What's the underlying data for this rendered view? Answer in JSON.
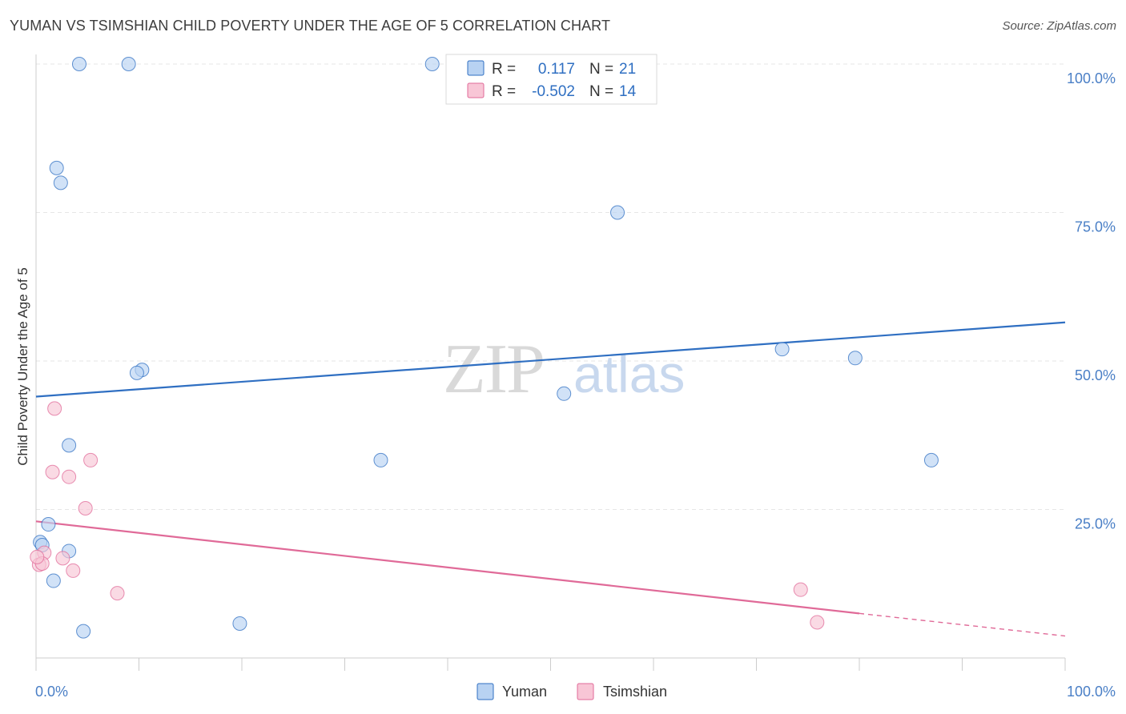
{
  "header": {
    "title": "YUMAN VS TSIMSHIAN CHILD POVERTY UNDER THE AGE OF 5 CORRELATION CHART",
    "source": "Source: ZipAtlas.com"
  },
  "watermark": {
    "zip": "ZIP",
    "atlas": "atlas"
  },
  "colors": {
    "yuman": "#2f6fc2",
    "yuman_fill": "#b8d2f2",
    "tsimshian": "#e06a98",
    "tsimshian_fill": "#f8c6d6",
    "grid": "#e6e6e6",
    "tick_label": "#4a7fc6"
  },
  "legend": {
    "r_label": "R =",
    "n_label": "N =",
    "yuman": {
      "r": "0.117",
      "n": "21"
    },
    "tsimshian": {
      "r": "-0.502",
      "n": "14"
    }
  },
  "chart_data": {
    "type": "scatter",
    "title": "YUMAN VS TSIMSHIAN CHILD POVERTY UNDER THE AGE OF 5 CORRELATION CHART",
    "xlabel": "",
    "ylabel": "Child Poverty Under the Age of 5",
    "xlim": [
      0,
      100
    ],
    "ylim": [
      0,
      100
    ],
    "x_tick_labels": [
      "0.0%",
      "100.0%"
    ],
    "y_ticks": [
      25,
      50,
      75,
      100
    ],
    "y_tick_labels": [
      "25.0%",
      "50.0%",
      "75.0%",
      "100.0%"
    ],
    "grid": true,
    "legend_position": "top-center",
    "series": [
      {
        "name": "Yuman",
        "color": "#2f6fc2",
        "points": [
          [
            4.2,
            100
          ],
          [
            9.0,
            100
          ],
          [
            38.5,
            100
          ],
          [
            2.0,
            82.5
          ],
          [
            2.4,
            80
          ],
          [
            56.5,
            75
          ],
          [
            10.3,
            48.5
          ],
          [
            9.8,
            48.0
          ],
          [
            72.5,
            52.0
          ],
          [
            79.6,
            50.5
          ],
          [
            51.3,
            44.5
          ],
          [
            33.5,
            33.3
          ],
          [
            87.0,
            33.3
          ],
          [
            3.2,
            35.8
          ],
          [
            1.2,
            22.5
          ],
          [
            0.4,
            19.5
          ],
          [
            0.6,
            19.0
          ],
          [
            3.2,
            18.0
          ],
          [
            1.7,
            13.0
          ],
          [
            4.6,
            4.5
          ],
          [
            19.8,
            5.8
          ]
        ],
        "trend": {
          "x": [
            0,
            100
          ],
          "y": [
            44,
            56.5
          ],
          "style": "solid"
        }
      },
      {
        "name": "Tsimshian",
        "color": "#e06a98",
        "points": [
          [
            1.8,
            42.0
          ],
          [
            1.6,
            31.3
          ],
          [
            3.2,
            30.5
          ],
          [
            5.3,
            33.3
          ],
          [
            4.8,
            25.2
          ],
          [
            0.8,
            17.7
          ],
          [
            2.6,
            16.8
          ],
          [
            0.3,
            15.7
          ],
          [
            0.6,
            15.9
          ],
          [
            3.6,
            14.7
          ],
          [
            7.9,
            10.9
          ],
          [
            74.3,
            11.5
          ],
          [
            75.9,
            6.0
          ],
          [
            0.1,
            17.0
          ]
        ],
        "trend": {
          "x": [
            0,
            80
          ],
          "y": [
            23,
            7.5
          ],
          "style": "solid",
          "dashed_extension": {
            "x": [
              80,
              100
            ],
            "y": [
              7.5,
              3.7
            ]
          }
        }
      }
    ]
  }
}
